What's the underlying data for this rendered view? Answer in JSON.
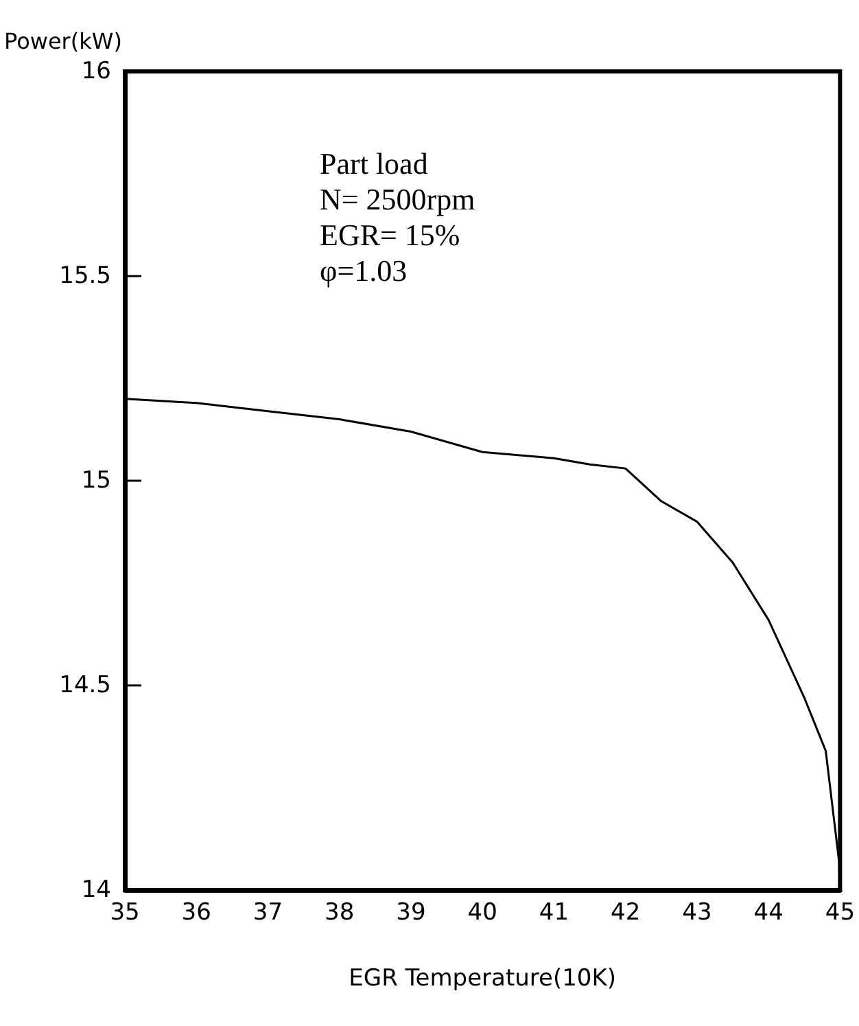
{
  "chart_data": {
    "type": "line",
    "xlabel": "EGR Temperature(10K)",
    "ylabel": "Power(kW)",
    "annotations": [
      "Part load",
      "N= 2500rpm",
      "EGR= 15%",
      "φ=1.03"
    ],
    "x": [
      35,
      36,
      37,
      38,
      39,
      40,
      41,
      41.5,
      42,
      42.5,
      43,
      43.5,
      44,
      44.5,
      44.8,
      45
    ],
    "series": [
      {
        "color": "#000000",
        "values": [
          15.2,
          15.19,
          15.17,
          15.15,
          15.12,
          15.07,
          15.055,
          15.04,
          15.03,
          14.95,
          14.9,
          14.8,
          14.66,
          14.47,
          14.34,
          14.05
        ]
      }
    ],
    "xlim": [
      35,
      45
    ],
    "xticks": [
      35,
      36,
      37,
      38,
      39,
      40,
      41,
      42,
      43,
      44,
      45
    ],
    "ylim": [
      14,
      16
    ],
    "yticks": [
      14,
      14.5,
      15,
      15.5,
      16
    ],
    "grid": false,
    "marker": "none",
    "line_style": "solid"
  }
}
